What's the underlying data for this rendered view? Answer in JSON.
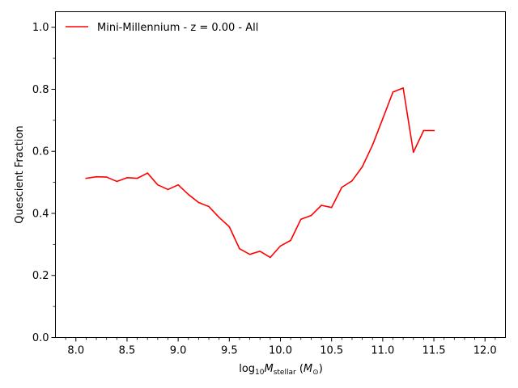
{
  "chart_data": {
    "type": "line",
    "title": "",
    "xlabel": {
      "prefix": "log",
      "prefix_sub": "10",
      "var": "M",
      "var_sub": "stellar",
      "unit_open": " (",
      "unit_var": "M",
      "unit_sub": "⊙",
      "unit_close": ")"
    },
    "ylabel": "Quescient Fraction",
    "xlim": [
      7.8,
      12.2
    ],
    "ylim": [
      0.0,
      1.05
    ],
    "xticks": [
      8.0,
      8.5,
      9.0,
      9.5,
      10.0,
      10.5,
      11.0,
      11.5,
      12.0
    ],
    "xtick_labels": [
      "8.0",
      "8.5",
      "9.0",
      "9.5",
      "10.0",
      "10.5",
      "11.0",
      "11.5",
      "12.0"
    ],
    "xminor_ticks": [
      7.9,
      8.1,
      8.2,
      8.3,
      8.4,
      8.6,
      8.7,
      8.8,
      8.9,
      9.1,
      9.2,
      9.3,
      9.4,
      9.6,
      9.7,
      9.8,
      9.9,
      10.1,
      10.2,
      10.3,
      10.4,
      10.6,
      10.7,
      10.8,
      10.9,
      11.1,
      11.2,
      11.3,
      11.4,
      11.6,
      11.7,
      11.8,
      11.9,
      12.1
    ],
    "yticks": [
      0.0,
      0.2,
      0.4,
      0.6,
      0.8,
      1.0
    ],
    "ytick_labels": [
      "0.0",
      "0.2",
      "0.4",
      "0.6",
      "0.8",
      "1.0"
    ],
    "yminor_ticks": [
      0.1,
      0.3,
      0.5,
      0.7,
      0.9
    ],
    "grid": false,
    "legend_position": "top-left",
    "series": [
      {
        "name": "Mini-Millennium - z = 0.00 - All",
        "color": "#ff0000",
        "x": [
          8.1,
          8.2,
          8.3,
          8.4,
          8.5,
          8.6,
          8.7,
          8.8,
          8.9,
          9.0,
          9.1,
          9.2,
          9.3,
          9.4,
          9.5,
          9.6,
          9.7,
          9.8,
          9.9,
          10.0,
          10.1,
          10.2,
          10.3,
          10.4,
          10.5,
          10.6,
          10.7,
          10.8,
          10.9,
          11.0,
          11.1,
          11.2,
          11.3,
          11.4,
          11.5
        ],
        "y": [
          0.513,
          0.518,
          0.517,
          0.503,
          0.515,
          0.513,
          0.53,
          0.492,
          0.477,
          0.492,
          0.461,
          0.435,
          0.422,
          0.387,
          0.357,
          0.286,
          0.268,
          0.278,
          0.258,
          0.295,
          0.313,
          0.381,
          0.393,
          0.426,
          0.419,
          0.484,
          0.505,
          0.55,
          0.62,
          0.705,
          0.791,
          0.804,
          0.597,
          0.667,
          0.667
        ]
      }
    ]
  }
}
